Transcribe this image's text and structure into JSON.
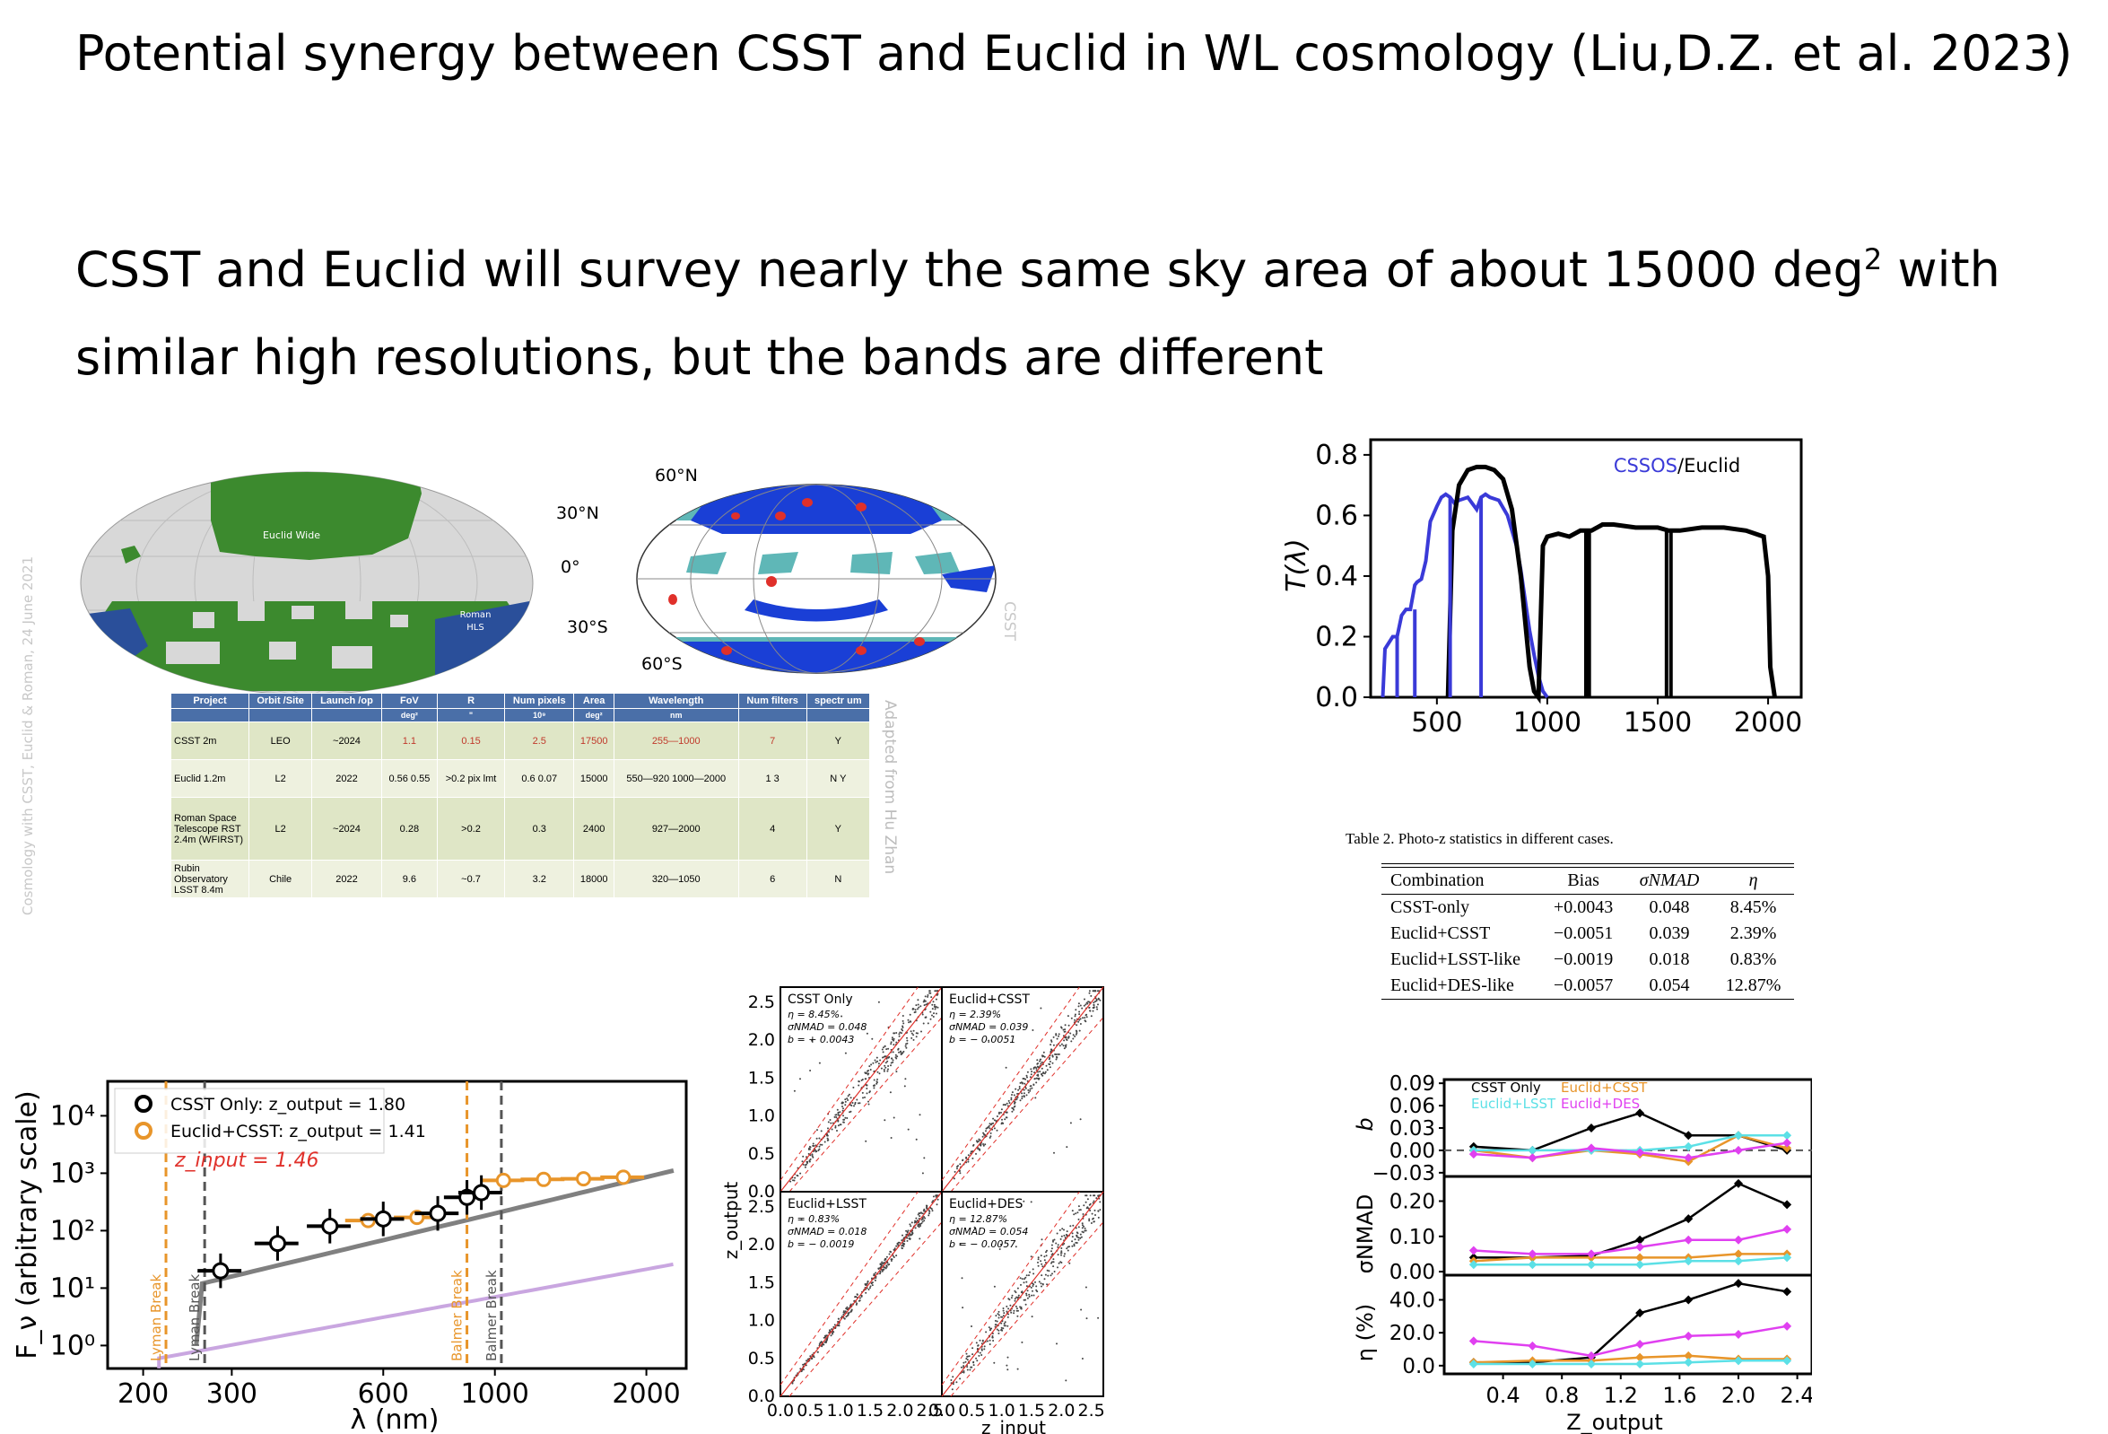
{
  "title": "Potential synergy between CSST and Euclid in WL cosmology (Liu,D.Z. et al. 2023)",
  "subtitle": {
    "line1_pre": "CSST and Euclid will survey nearly the same sky area of about 15000 deg",
    "line1_sup": "2",
    "line1_post": " with",
    "line2": "similar high resolutions, but the bands are different"
  },
  "sky_map_left": {
    "region_label": "Euclid Wide",
    "roman_label": "Roman\nHLS",
    "side_caption": "Cosmology with CSST, Euclid & Roman, 24 June 2021",
    "colors": {
      "euclid": "#3c8a2e",
      "roman": "#2a4f9a",
      "grid": "#d8d8d8"
    }
  },
  "sky_map_right": {
    "labels": [
      "60°N",
      "30°N",
      "0°",
      "30°S",
      "60°S"
    ],
    "side_caption": "CSST",
    "colors": {
      "deep": "#1a3fd6",
      "teal": "#5fb7b7",
      "spot": "#e0302a"
    }
  },
  "projects_table": {
    "side_caption": "Adapted from Hu Zhan",
    "headers": [
      "Project",
      "Orbit /Site",
      "Launch /op",
      "FoV",
      "R",
      "Num pixels",
      "Area",
      "Wavelength",
      "Num filters",
      "spectr um"
    ],
    "units": [
      "",
      "",
      "",
      "deg²",
      "\"",
      "10⁹",
      "deg²",
      "nm",
      "",
      ""
    ],
    "rows": [
      [
        "CSST 2m",
        "LEO",
        "~2024",
        "1.1",
        "0.15",
        "2.5",
        "17500",
        "255—1000",
        "7",
        "Y"
      ],
      [
        "Euclid 1.2m",
        "L2",
        "2022",
        "0.56 0.55",
        ">0.2 pix lmt",
        "0.6 0.07",
        "15000",
        "550—920 1000—2000",
        "1 3",
        "N Y"
      ],
      [
        "Roman Space Telescope RST 2.4m (WFIRST)",
        "L2",
        "~2024",
        "0.28",
        ">0.2",
        "0.3",
        "2400",
        "927—2000",
        "4",
        "Y"
      ],
      [
        "Rubin Observatory LSST 8.4m",
        "Chile",
        "2022",
        "9.6",
        "~0.7",
        "3.2",
        "18000",
        "320—1050",
        "6",
        "N"
      ]
    ]
  },
  "stat_table": {
    "caption": "Table 2. Photo-z statistics in different cases.",
    "headers": [
      "Combination",
      "Bias",
      "σNMAD",
      "η"
    ],
    "rows": [
      [
        "CSST-only",
        "+0.0043",
        "0.048",
        "8.45%"
      ],
      [
        "Euclid+CSST",
        "−0.0051",
        "0.039",
        "2.39%"
      ],
      [
        "Euclid+LSST-like",
        "−0.0019",
        "0.018",
        "0.83%"
      ],
      [
        "Euclid+DES-like",
        "−0.0057",
        "0.054",
        "12.87%"
      ]
    ]
  },
  "chart_data": [
    {
      "type": "line",
      "panel": "transmission",
      "legend": [
        "CSSOS",
        "/Euclid"
      ],
      "ylabel": "T(λ)",
      "xlim": [
        200,
        2150
      ],
      "ylim": [
        0,
        0.85
      ],
      "xticks": [
        500,
        1000,
        1500,
        2000
      ],
      "yticks": [
        0.0,
        0.2,
        0.4,
        0.6,
        0.8
      ],
      "colors": {
        "csst": "#3a3ad8",
        "euclid": "#000000"
      },
      "series": [
        {
          "name": "CSSOS",
          "x": [
            255,
            265,
            300,
            320,
            340,
            360,
            380,
            400,
            410,
            430,
            450,
            470,
            500,
            520,
            540,
            560,
            580,
            600,
            640,
            680,
            700,
            720,
            740,
            780,
            820,
            860,
            880,
            900,
            920,
            940,
            960,
            980,
            1000
          ],
          "y": [
            0.0,
            0.16,
            0.2,
            0.2,
            0.27,
            0.29,
            0.29,
            0.37,
            0.38,
            0.39,
            0.45,
            0.58,
            0.63,
            0.66,
            0.67,
            0.66,
            0.64,
            0.65,
            0.66,
            0.62,
            0.66,
            0.67,
            0.66,
            0.65,
            0.6,
            0.5,
            0.42,
            0.32,
            0.22,
            0.14,
            0.07,
            0.02,
            0.0
          ]
        },
        {
          "name": "Euclid",
          "x": [
            550,
            570,
            600,
            640,
            680,
            720,
            760,
            800,
            840,
            880,
            920,
            940,
            960,
            980,
            1000,
            1050,
            1100,
            1150,
            1200,
            1250,
            1300,
            1400,
            1500,
            1550,
            1600,
            1700,
            1800,
            1900,
            1980,
            2000,
            2010,
            2030
          ],
          "y": [
            0.0,
            0.55,
            0.7,
            0.75,
            0.76,
            0.76,
            0.75,
            0.72,
            0.62,
            0.4,
            0.1,
            0.02,
            0.0,
            0.5,
            0.53,
            0.54,
            0.53,
            0.55,
            0.55,
            0.57,
            0.57,
            0.56,
            0.56,
            0.55,
            0.55,
            0.56,
            0.56,
            0.55,
            0.53,
            0.4,
            0.1,
            0.0
          ]
        }
      ]
    },
    {
      "type": "line",
      "panel": "sed",
      "ylabel": "F_ν (arbitrary scale)",
      "xlabel": "λ (nm)",
      "xticks": [
        "200",
        "300",
        "600",
        "1000",
        "2000"
      ],
      "yticks": [
        "10⁰",
        "10¹",
        "10²",
        "10³",
        "10⁴"
      ],
      "legend": [
        {
          "label": "CSST Only: z_output = 1.80",
          "color": "#000000"
        },
        {
          "label": "Euclid+CSST: z_output = 1.41",
          "color": "#e8952a"
        }
      ],
      "annotation": "z_input = 1.46",
      "break_labels": [
        "Lyman Break",
        "Lyman Break",
        "Balmer Break",
        "Balmer Break"
      ],
      "csst_points": {
        "x": [
          285,
          370,
          470,
          600,
          770,
          880,
          940
        ],
        "y": [
          20,
          60,
          120,
          160,
          200,
          380,
          460
        ]
      },
      "euclid_points": {
        "x": [
          560,
          700,
          1040,
          1250,
          1500,
          1800
        ],
        "y": [
          150,
          170,
          750,
          780,
          800,
          850
        ]
      },
      "colors": {
        "grey": "#808080",
        "orange": "#e8952a",
        "lilac": "#c9a6e0"
      }
    },
    {
      "type": "scatter",
      "panel": "zin-zout",
      "ylabel": "z_output",
      "xlabel": "z_input",
      "xticks": [
        "0.0",
        "0.5",
        "1.0",
        "1.5",
        "2.0",
        "2.5"
      ],
      "yticks": [
        "0.0",
        "0.5",
        "1.0",
        "1.5",
        "2.0",
        "2.5"
      ],
      "subpanels": [
        {
          "name": "CSST Only",
          "stats": [
            "η = 8.45%",
            "σNMAD = 0.048",
            "b = + 0.0043"
          ]
        },
        {
          "name": "Euclid+CSST",
          "stats": [
            "η = 2.39%",
            "σNMAD = 0.039",
            "b = − 0.0051"
          ]
        },
        {
          "name": "Euclid+LSST",
          "stats": [
            "η = 0.83%",
            "σNMAD = 0.018",
            "b = − 0.0019"
          ]
        },
        {
          "name": "Euclid+DES",
          "stats": [
            "η = 12.87%",
            "σNMAD = 0.054",
            "b = − 0.0057"
          ]
        }
      ]
    },
    {
      "type": "line",
      "panel": "stats-vs-z",
      "xlabel": "Z_output",
      "x": [
        0.2,
        0.6,
        1.0,
        1.33,
        1.66,
        2.0,
        2.33
      ],
      "xticks": [
        "0.4",
        "0.8",
        "1.2",
        "1.6",
        "2.0",
        "2.4"
      ],
      "legend": [
        "CSST Only",
        "Euclid+CSST",
        "Euclid+LSST",
        "Euclid+DES"
      ],
      "colors": [
        "#000000",
        "#e8952a",
        "#5ce0e6",
        "#e040f0"
      ],
      "b": {
        "label": "b",
        "yticks": [
          "0.09",
          "0.06",
          "0.03",
          "0.00",
          "−0.03"
        ],
        "series": [
          [
            0.005,
            0.0,
            0.03,
            0.05,
            0.02,
            0.02,
            0.0
          ],
          [
            0.0,
            -0.01,
            0.0,
            -0.005,
            -0.015,
            0.02,
            0.003
          ],
          [
            0.0,
            0.0,
            0.0,
            0.0,
            0.005,
            0.02,
            0.02
          ],
          [
            -0.005,
            -0.01,
            0.003,
            -0.003,
            -0.01,
            0.0,
            0.01
          ]
        ]
      },
      "sigma": {
        "label": "σNMAD",
        "yticks": [
          "0.20",
          "0.10",
          "0.00"
        ],
        "series": [
          [
            0.04,
            0.04,
            0.045,
            0.09,
            0.15,
            0.25,
            0.19
          ],
          [
            0.03,
            0.04,
            0.04,
            0.04,
            0.04,
            0.05,
            0.05
          ],
          [
            0.02,
            0.02,
            0.02,
            0.02,
            0.03,
            0.03,
            0.04
          ],
          [
            0.06,
            0.05,
            0.05,
            0.07,
            0.09,
            0.09,
            0.12
          ]
        ]
      },
      "eta": {
        "label": "η (%)",
        "yticks": [
          "40.0",
          "20.0",
          "0.0"
        ],
        "series": [
          [
            2,
            2,
            5,
            32,
            40,
            50,
            45
          ],
          [
            2,
            3,
            3,
            5,
            6,
            4,
            4
          ],
          [
            1,
            1,
            1,
            1,
            2,
            3,
            3
          ],
          [
            15,
            12,
            6,
            13,
            18,
            19,
            24
          ]
        ]
      }
    }
  ]
}
